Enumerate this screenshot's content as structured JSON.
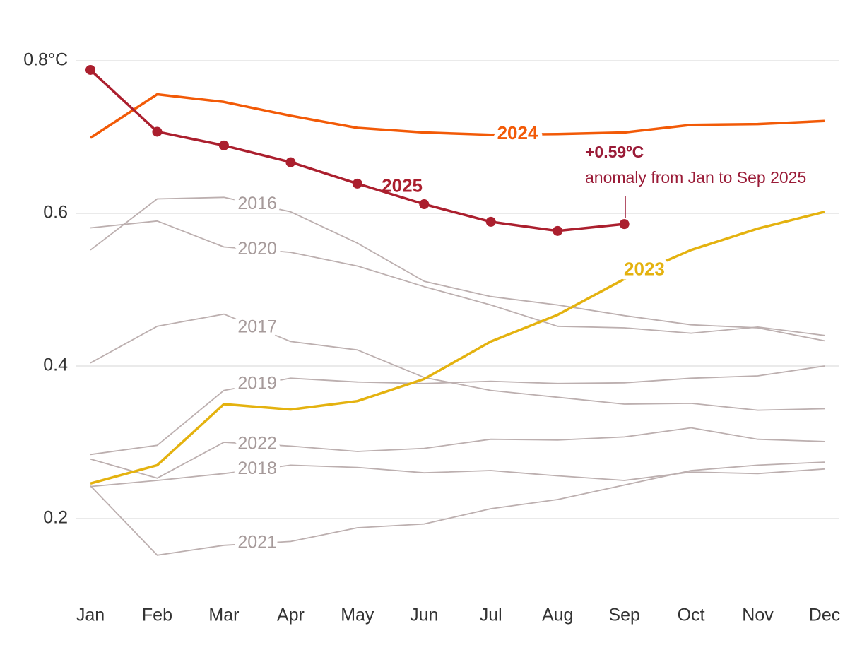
{
  "chart_data": {
    "type": "line",
    "categories": [
      "Jan",
      "Feb",
      "Mar",
      "Apr",
      "May",
      "Jun",
      "Jul",
      "Aug",
      "Sep",
      "Oct",
      "Nov",
      "Dec"
    ],
    "ylim": [
      0.12,
      0.84
    ],
    "yticks": [
      0.2,
      0.4,
      0.6,
      {
        "value": 0.8,
        "label": "0.8°C"
      }
    ],
    "grid": true,
    "annotation": {
      "title": "+0.59ºC",
      "text": "anomaly from Jan to Sep 2025"
    },
    "series": [
      {
        "name": "2025",
        "color": "#ab1f2e",
        "markers": true,
        "values": [
          0.788,
          0.707,
          0.689,
          0.667,
          0.639,
          0.612,
          0.589,
          0.577,
          0.586,
          null,
          null,
          null
        ]
      },
      {
        "name": "2024",
        "color": "#f25a07",
        "values": [
          0.699,
          0.756,
          0.746,
          0.728,
          0.712,
          0.706,
          0.703,
          0.704,
          0.706,
          0.716,
          0.717,
          0.721
        ]
      },
      {
        "name": "2023",
        "color": "#e4b20f",
        "values": [
          0.246,
          0.27,
          0.35,
          0.343,
          0.354,
          0.383,
          0.432,
          0.467,
          0.514,
          0.552,
          0.58,
          0.602
        ]
      },
      {
        "name": "2016",
        "color": "#bcafaf",
        "values": [
          0.552,
          0.619,
          0.621,
          0.602,
          0.561,
          0.511,
          0.491,
          0.48,
          0.466,
          0.454,
          0.45,
          0.433
        ]
      },
      {
        "name": "2020",
        "color": "#bcafaf",
        "values": [
          0.581,
          0.59,
          0.556,
          0.549,
          0.531,
          0.504,
          0.48,
          0.452,
          0.45,
          0.443,
          0.451,
          0.44
        ]
      },
      {
        "name": "2017",
        "color": "#bcafaf",
        "values": [
          0.404,
          0.452,
          0.468,
          0.432,
          0.421,
          0.385,
          0.368,
          0.359,
          0.35,
          0.351,
          0.342,
          0.344
        ]
      },
      {
        "name": "2019",
        "color": "#bcafaf",
        "values": [
          0.284,
          0.296,
          0.368,
          0.384,
          0.379,
          0.377,
          0.38,
          0.377,
          0.378,
          0.384,
          0.387,
          0.4
        ]
      },
      {
        "name": "2022",
        "color": "#bcafaf",
        "values": [
          0.278,
          0.253,
          0.3,
          0.295,
          0.288,
          0.292,
          0.304,
          0.303,
          0.307,
          0.319,
          0.304,
          0.301
        ]
      },
      {
        "name": "2018",
        "color": "#bcafaf",
        "values": [
          0.242,
          0.25,
          0.259,
          0.27,
          0.267,
          0.26,
          0.263,
          0.256,
          0.25,
          0.261,
          0.259,
          0.265
        ]
      },
      {
        "name": "2021",
        "color": "#bcafaf",
        "values": [
          0.243,
          0.152,
          0.165,
          0.17,
          0.188,
          0.193,
          0.213,
          0.225,
          0.244,
          0.263,
          0.27,
          0.274
        ]
      }
    ]
  }
}
